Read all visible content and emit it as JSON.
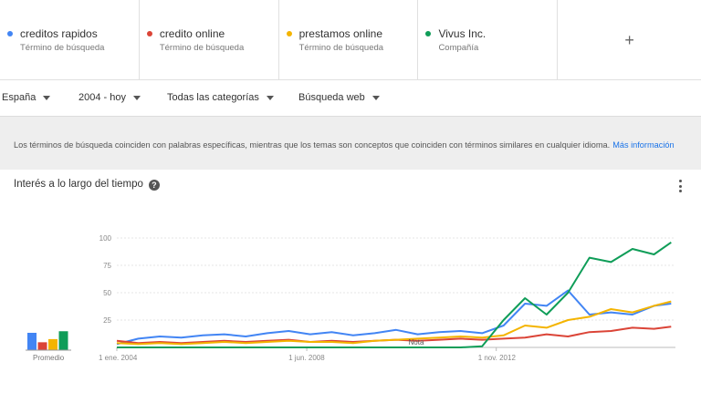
{
  "terms": [
    {
      "name": "creditos rapidos",
      "type": "Término de búsqueda",
      "color": "#4285f4"
    },
    {
      "name": "credito online",
      "type": "Término de búsqueda",
      "color": "#db4437"
    },
    {
      "name": "prestamos online",
      "type": "Término de búsqueda",
      "color": "#f4b400"
    },
    {
      "name": "Vivus Inc.",
      "type": "Compañía",
      "color": "#0f9d58"
    }
  ],
  "add_term_label": "+",
  "filters": {
    "region": "España",
    "time": "2004 - hoy",
    "category": "Todas las categorías",
    "search_type": "Búsqueda web"
  },
  "info": {
    "text": "Los términos de búsqueda coinciden con palabras específicas, mientras que los temas son conceptos que coinciden con términos similares en cualquier idioma.",
    "link": "Más información"
  },
  "card": {
    "title": "Interés a lo largo del tiempo",
    "average_label": "Promedio",
    "note_label": "Nota"
  },
  "chart_data": {
    "type": "line",
    "ylim": [
      0,
      100
    ],
    "y_ticks": [
      "25",
      "50",
      "75",
      "100"
    ],
    "x_ticks": [
      "1 ene. 2004",
      "1 jun. 2008",
      "1 nov. 2012"
    ],
    "x_range": [
      "2004-01",
      "2017-01"
    ],
    "averages": [
      {
        "name": "creditos rapidos",
        "value": 22,
        "color": "#4285f4"
      },
      {
        "name": "credito online",
        "value": 10,
        "color": "#db4437"
      },
      {
        "name": "prestamos online",
        "value": 14,
        "color": "#f4b400"
      },
      {
        "name": "Vivus Inc.",
        "value": 24,
        "color": "#0f9d58"
      }
    ],
    "series": [
      {
        "name": "creditos rapidos",
        "color": "#4285f4",
        "x": [
          2004.0,
          2004.5,
          2005.0,
          2005.5,
          2006.0,
          2006.5,
          2007.0,
          2007.5,
          2008.0,
          2008.5,
          2009.0,
          2009.5,
          2010.0,
          2010.5,
          2011.0,
          2011.5,
          2012.0,
          2012.5,
          2013.0,
          2013.5,
          2014.0,
          2014.5,
          2015.0,
          2015.5,
          2016.0,
          2016.5,
          2016.9
        ],
        "values": [
          3,
          8,
          10,
          9,
          11,
          12,
          10,
          13,
          15,
          12,
          14,
          11,
          13,
          16,
          12,
          14,
          15,
          13,
          20,
          40,
          38,
          52,
          30,
          32,
          30,
          38,
          40
        ]
      },
      {
        "name": "credito online",
        "color": "#db4437",
        "x": [
          2004.0,
          2004.5,
          2005.0,
          2005.5,
          2006.0,
          2006.5,
          2007.0,
          2007.5,
          2008.0,
          2008.5,
          2009.0,
          2009.5,
          2010.0,
          2010.5,
          2011.0,
          2011.5,
          2012.0,
          2012.5,
          2013.0,
          2013.5,
          2014.0,
          2014.5,
          2015.0,
          2015.5,
          2016.0,
          2016.5,
          2016.9
        ],
        "values": [
          6,
          4,
          5,
          4,
          5,
          6,
          5,
          6,
          7,
          5,
          6,
          5,
          6,
          7,
          6,
          7,
          8,
          7,
          8,
          9,
          12,
          10,
          14,
          15,
          18,
          17,
          19
        ]
      },
      {
        "name": "prestamos online",
        "color": "#f4b400",
        "x": [
          2004.0,
          2004.5,
          2005.0,
          2005.5,
          2006.0,
          2006.5,
          2007.0,
          2007.5,
          2008.0,
          2008.5,
          2009.0,
          2009.5,
          2010.0,
          2010.5,
          2011.0,
          2011.5,
          2012.0,
          2012.5,
          2013.0,
          2013.5,
          2014.0,
          2014.5,
          2015.0,
          2015.5,
          2016.0,
          2016.5,
          2016.9
        ],
        "values": [
          4,
          3,
          4,
          3,
          4,
          5,
          4,
          5,
          6,
          5,
          5,
          4,
          6,
          7,
          8,
          9,
          10,
          9,
          11,
          20,
          18,
          25,
          28,
          35,
          32,
          38,
          42
        ]
      },
      {
        "name": "Vivus Inc.",
        "color": "#0f9d58",
        "x": [
          2004.0,
          2004.5,
          2005.0,
          2005.5,
          2006.0,
          2006.5,
          2007.0,
          2007.5,
          2008.0,
          2008.5,
          2009.0,
          2009.5,
          2010.0,
          2010.5,
          2011.0,
          2011.5,
          2012.0,
          2012.5,
          2013.0,
          2013.5,
          2014.0,
          2014.5,
          2015.0,
          2015.5,
          2016.0,
          2016.5,
          2016.9
        ],
        "values": [
          0,
          0,
          0,
          0,
          0,
          0,
          0,
          0,
          0,
          0,
          0,
          0,
          0,
          0,
          0,
          0,
          0,
          1,
          25,
          45,
          30,
          50,
          82,
          78,
          90,
          85,
          96
        ]
      }
    ]
  }
}
